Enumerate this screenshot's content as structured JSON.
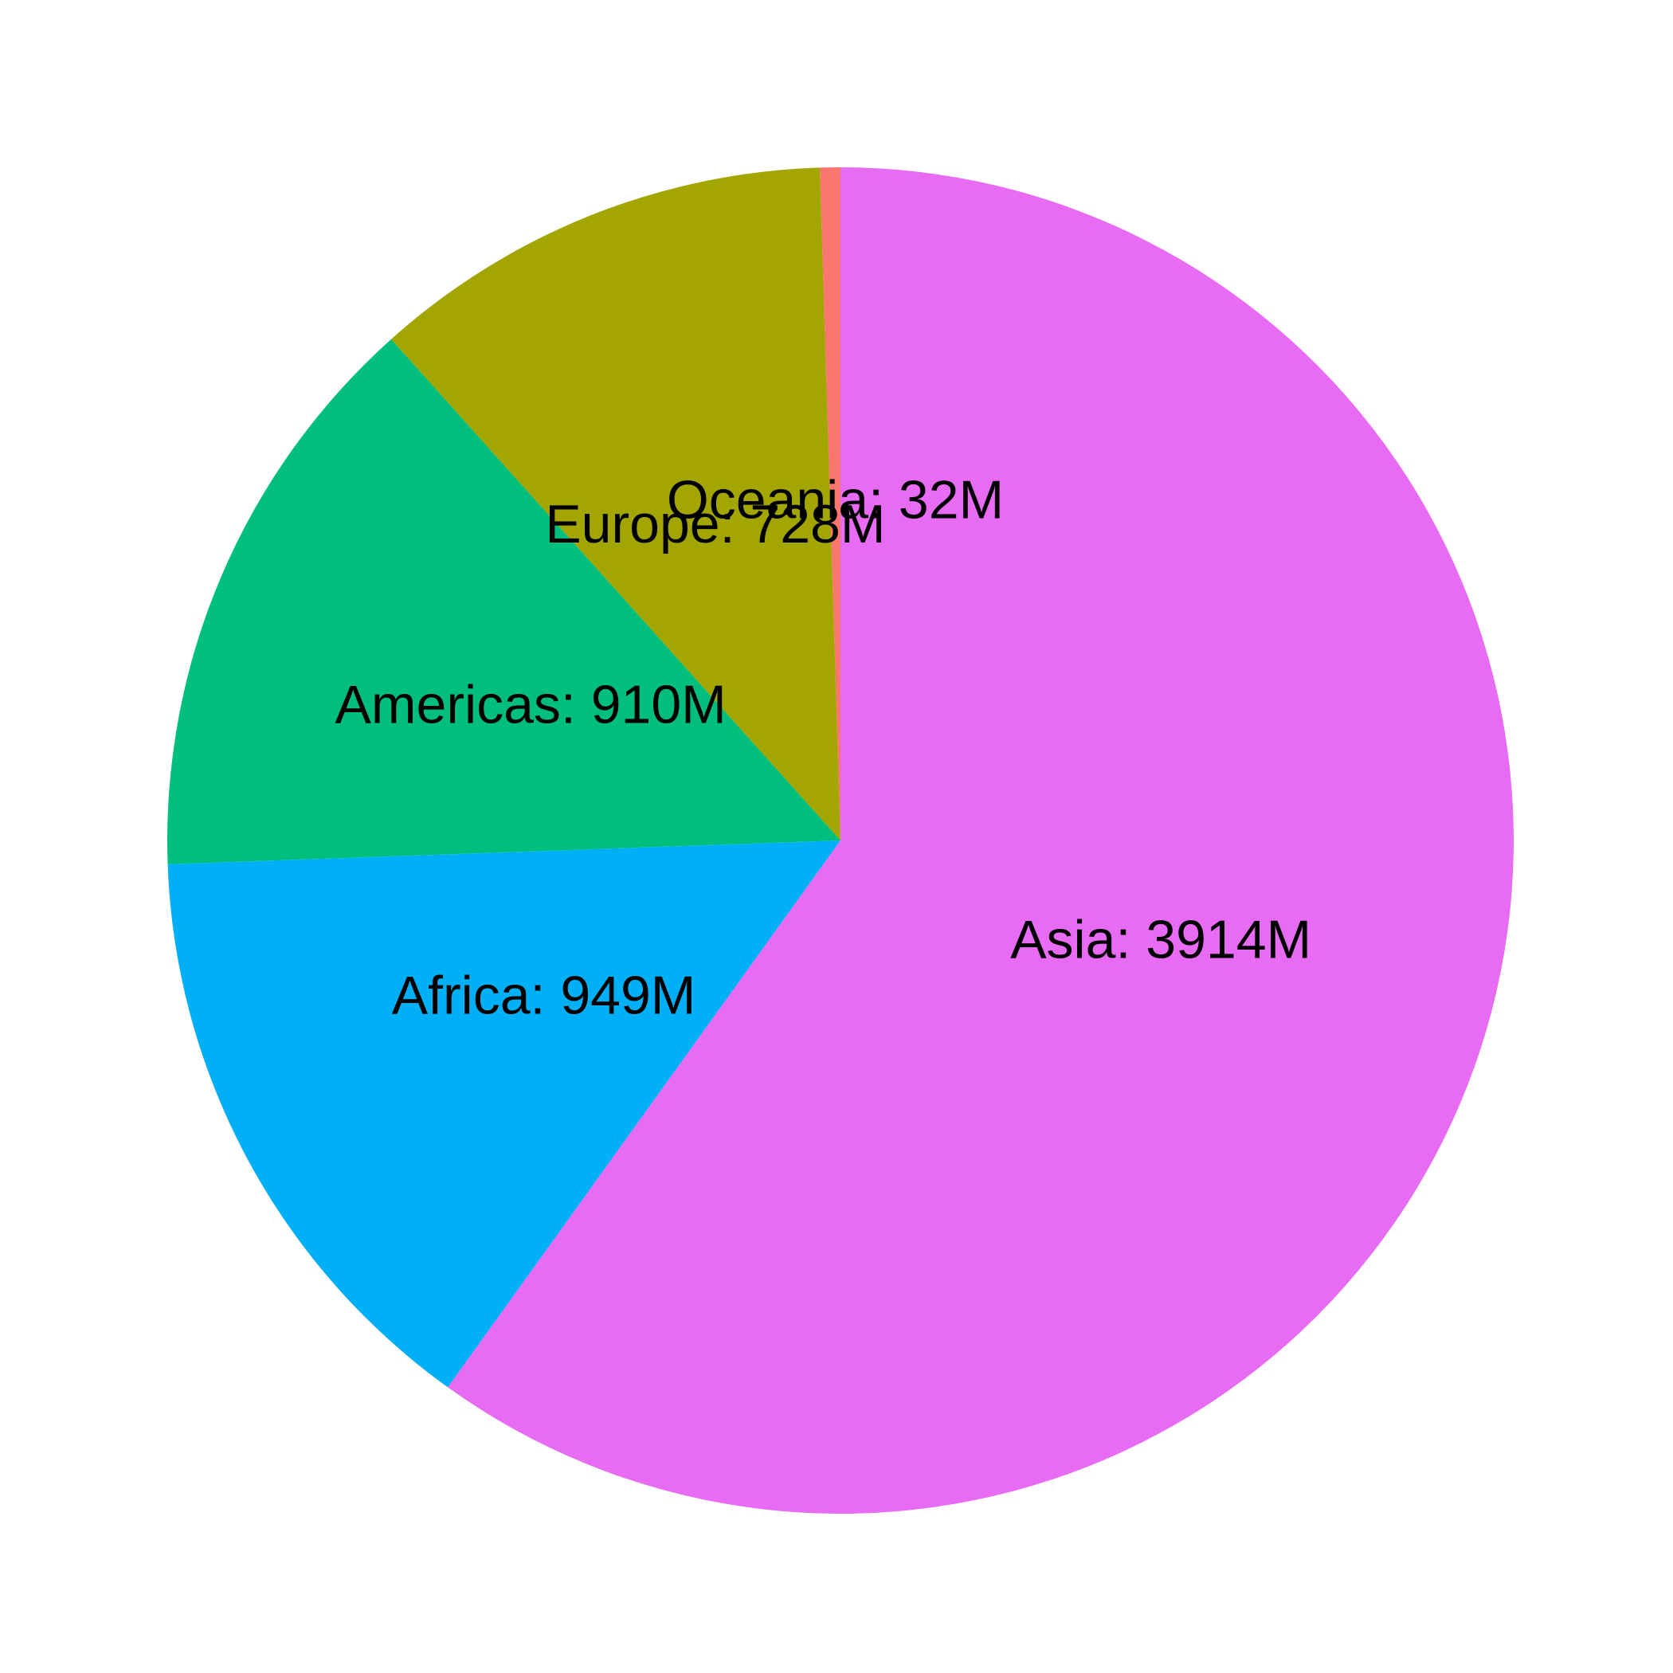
{
  "chart_data": {
    "type": "pie",
    "title": "",
    "slices": [
      {
        "label": "Oceania",
        "value": 32,
        "display": "Oceania: 32M",
        "color": "#F8766D"
      },
      {
        "label": "Europe",
        "value": 728,
        "display": "Europe: 728M",
        "color": "#A3A500"
      },
      {
        "label": "Americas",
        "value": 910,
        "display": "Americas: 910M",
        "color": "#00BF7D"
      },
      {
        "label": "Africa",
        "value": 949,
        "display": "Africa: 949M",
        "color": "#00B0F6"
      },
      {
        "label": "Asia",
        "value": 3914,
        "display": "Asia: 3914M",
        "color": "#E76BF3"
      }
    ],
    "start": "top",
    "direction": "counterclockwise",
    "legend": "none"
  }
}
